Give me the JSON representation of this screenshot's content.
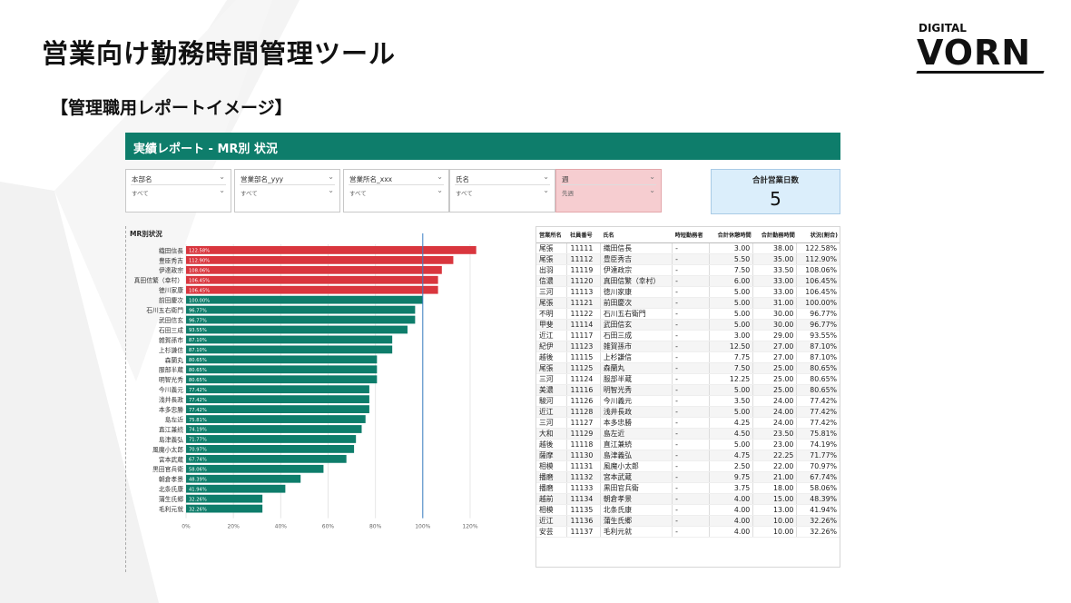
{
  "slide": {
    "title": "営業向け勤務時間管理ツール",
    "subtitle": "【管理職用レポートイメージ】",
    "logo_top": "DIGITAL",
    "logo_main": "VORN"
  },
  "report": {
    "header": "実績レポート - MR別 状況",
    "slicers": [
      {
        "label": "本部名",
        "value": "すべて"
      },
      {
        "label": "営業部名_yyy",
        "value": "すべて"
      },
      {
        "label": "営業所名_xxx",
        "value": "すべて"
      },
      {
        "label": "氏名",
        "value": "すべて"
      },
      {
        "label": "週",
        "value": "先週"
      }
    ],
    "kpi": {
      "label": "合計営業日数",
      "value": "5"
    },
    "chart_title": "MR別状況",
    "table": {
      "headers": [
        "営業所名",
        "社員番号",
        "氏名",
        "時短勤務者",
        "合計休憩時間",
        "合計勤務時間",
        "状況(割合)"
      ],
      "rows": [
        [
          "尾張",
          "11111",
          "織田信長",
          "-",
          "3.00",
          "38.00",
          "122.58%"
        ],
        [
          "尾張",
          "11112",
          "豊臣秀吉",
          "-",
          "5.50",
          "35.00",
          "112.90%"
        ],
        [
          "出羽",
          "11119",
          "伊達政宗",
          "-",
          "7.50",
          "33.50",
          "108.06%"
        ],
        [
          "信濃",
          "11120",
          "真田信繁（幸村）",
          "-",
          "6.00",
          "33.00",
          "106.45%"
        ],
        [
          "三河",
          "11113",
          "徳川家康",
          "-",
          "5.00",
          "33.00",
          "106.45%"
        ],
        [
          "尾張",
          "11121",
          "前田慶次",
          "-",
          "5.00",
          "31.00",
          "100.00%"
        ],
        [
          "不明",
          "11122",
          "石川五右衛門",
          "-",
          "5.00",
          "30.00",
          "96.77%"
        ],
        [
          "甲斐",
          "11114",
          "武田信玄",
          "-",
          "5.00",
          "30.00",
          "96.77%"
        ],
        [
          "近江",
          "11117",
          "石田三成",
          "-",
          "3.00",
          "29.00",
          "93.55%"
        ],
        [
          "紀伊",
          "11123",
          "雑賀孫市",
          "-",
          "12.50",
          "27.00",
          "87.10%"
        ],
        [
          "越後",
          "11115",
          "上杉謙信",
          "-",
          "7.75",
          "27.00",
          "87.10%"
        ],
        [
          "尾張",
          "11125",
          "森蘭丸",
          "-",
          "7.50",
          "25.00",
          "80.65%"
        ],
        [
          "三河",
          "11124",
          "服部半蔵",
          "-",
          "12.25",
          "25.00",
          "80.65%"
        ],
        [
          "美濃",
          "11116",
          "明智光秀",
          "-",
          "5.00",
          "25.00",
          "80.65%"
        ],
        [
          "駿河",
          "11126",
          "今川義元",
          "-",
          "3.50",
          "24.00",
          "77.42%"
        ],
        [
          "近江",
          "11128",
          "浅井長政",
          "-",
          "5.00",
          "24.00",
          "77.42%"
        ],
        [
          "三河",
          "11127",
          "本多忠勝",
          "-",
          "4.25",
          "24.00",
          "77.42%"
        ],
        [
          "大和",
          "11129",
          "島左近",
          "-",
          "4.50",
          "23.50",
          "75.81%"
        ],
        [
          "越後",
          "11118",
          "直江兼続",
          "-",
          "5.00",
          "23.00",
          "74.19%"
        ],
        [
          "薩摩",
          "11130",
          "島津義弘",
          "-",
          "4.75",
          "22.25",
          "71.77%"
        ],
        [
          "相模",
          "11131",
          "風魔小太郎",
          "-",
          "2.50",
          "22.00",
          "70.97%"
        ],
        [
          "播磨",
          "11132",
          "宮本武蔵",
          "-",
          "9.75",
          "21.00",
          "67.74%"
        ],
        [
          "播磨",
          "11133",
          "黒田官兵衛",
          "-",
          "3.75",
          "18.00",
          "58.06%"
        ],
        [
          "越前",
          "11134",
          "朝倉孝景",
          "-",
          "4.00",
          "15.00",
          "48.39%"
        ],
        [
          "相模",
          "11135",
          "北条氏康",
          "-",
          "4.00",
          "13.00",
          "41.94%"
        ],
        [
          "近江",
          "11136",
          "蒲生氏郷",
          "-",
          "4.00",
          "10.00",
          "32.26%"
        ],
        [
          "安芸",
          "11137",
          "毛利元就",
          "-",
          "4.00",
          "10.00",
          "32.26%"
        ]
      ]
    }
  },
  "colors": {
    "header_green": "#0e7d6b",
    "bar_over": "#d9363e",
    "bar_normal": "#0e7d6b",
    "ref_line": "#3b7fc4",
    "kpi_bg": "#dbeefb",
    "slicer_pink": "#f6cdd0"
  },
  "chart_data": {
    "type": "bar",
    "orientation": "horizontal",
    "title": "MR別状況",
    "categories": [
      "織田信長",
      "豊臣秀吉",
      "伊達政宗",
      "真田信繁（幸村）",
      "徳川家康",
      "前田慶次",
      "石川五右衛門",
      "武田信玄",
      "石田三成",
      "雑賀孫市",
      "上杉謙信",
      "森蘭丸",
      "服部半蔵",
      "明智光秀",
      "今川義元",
      "浅井長政",
      "本多忠勝",
      "島左近",
      "直江兼続",
      "島津義弘",
      "風魔小太郎",
      "宮本武蔵",
      "黒田官兵衛",
      "朝倉孝景",
      "北条氏康",
      "蒲生氏郷",
      "毛利元就"
    ],
    "values": [
      122.58,
      112.9,
      108.06,
      106.45,
      106.45,
      100.0,
      96.77,
      96.77,
      93.55,
      87.1,
      87.1,
      80.65,
      80.65,
      80.65,
      77.42,
      77.42,
      77.42,
      75.81,
      74.19,
      71.77,
      70.97,
      67.74,
      58.06,
      48.39,
      41.94,
      32.26,
      32.26
    ],
    "data_labels": [
      "122.58%",
      "112.90%",
      "108.06%",
      "106.45%",
      "106.45%",
      "100.00%",
      "96.77%",
      "96.77%",
      "93.55%",
      "87.10%",
      "87.10%",
      "80.65%",
      "80.65%",
      "80.65%",
      "77.42%",
      "77.42%",
      "77.42%",
      "75.81%",
      "74.19%",
      "71.77%",
      "70.97%",
      "67.74%",
      "58.06%",
      "48.39%",
      "41.94%",
      "32.26%",
      "32.26%"
    ],
    "x_ticks": [
      "0%",
      "20%",
      "40%",
      "60%",
      "80%",
      "100%",
      "120%"
    ],
    "xlim": [
      0,
      125
    ],
    "reference_line": 100,
    "highlight_rule": "values > 100 shown in red",
    "grid": true
  }
}
